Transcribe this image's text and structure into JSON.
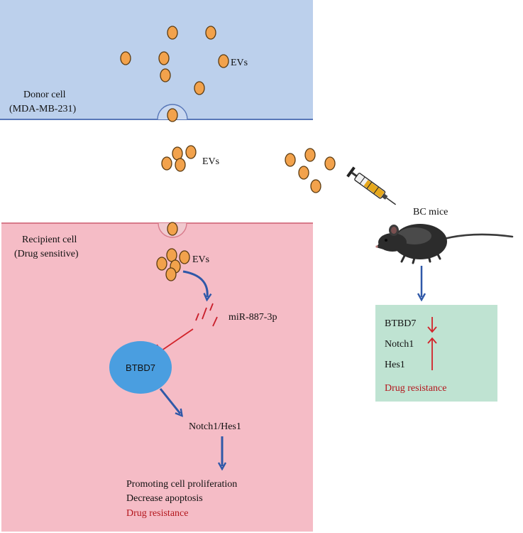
{
  "donor": {
    "line1": "Donor cell",
    "line2": "(MDA-MB-231)",
    "ev_label": "EVs"
  },
  "transit": {
    "ev_label": "EVs"
  },
  "recipient": {
    "line1": "Recipient cell",
    "line2": "(Drug sensitive)",
    "ev_label": "EVs",
    "mirna": "miR-887-3p",
    "target": "BTBD7",
    "pathway": "Notch1/Hes1",
    "outcome1": "Promoting cell proliferation",
    "outcome2": "Decrease apoptosis",
    "outcome3": "Drug resistance"
  },
  "mice": {
    "label": "BC mice",
    "marker1": "BTBD7",
    "marker2": "Notch1",
    "marker3": "Hes1",
    "resistance": "Drug resistance"
  },
  "colors": {
    "donor_bg": "#bcd0ec",
    "recipient_bg": "#f5bcc6",
    "result_bg": "#bfe3d2",
    "ev_fill": "#f2a24c",
    "btbd7_fill": "#4a9ee0",
    "arrow_blue": "#2f58a8",
    "inhibit_red": "#d2232a",
    "highlight_red": "#b3171d"
  },
  "icons": [
    "syringe-icon",
    "mouse-icon",
    "up-arrow-icon",
    "down-arrow-icon",
    "inhibition-icon"
  ]
}
